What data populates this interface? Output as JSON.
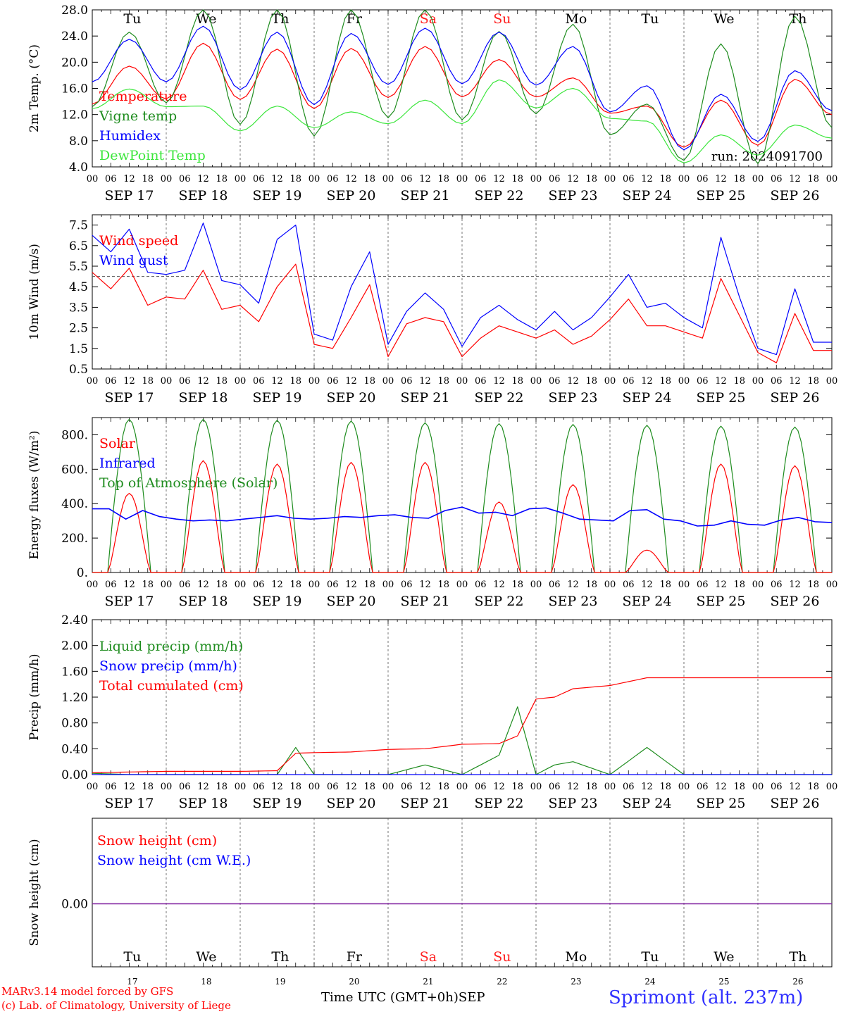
{
  "days": [
    "Tu",
    "We",
    "Th",
    "Fr",
    "Sa",
    "Su",
    "Mo",
    "Tu",
    "We",
    "Th"
  ],
  "weekend_days": [
    "Sa",
    "Su"
  ],
  "weekend_color": "#ff2020",
  "dates": [
    "SEP 17",
    "SEP 18",
    "SEP 19",
    "SEP 20",
    "SEP 21",
    "SEP 22",
    "SEP 23",
    "SEP 24",
    "SEP 25",
    "SEP 26"
  ],
  "day_numbers": [
    "17",
    "18",
    "19",
    "20",
    "21",
    "22",
    "23",
    "24",
    "25",
    "26"
  ],
  "hour_labels": [
    "00",
    "06",
    "12",
    "18"
  ],
  "run_label": "run: 2024091700",
  "x_axis_title": "Time UTC (GMT+0h)",
  "x_axis_month": "SEP",
  "footer": {
    "model": "MARv3.14 model forced by GFS",
    "credit": "(c) Lab. of Climatology, University of Liege",
    "station": "Sprimont (alt. 237m)"
  },
  "colors": {
    "red": "#ff0000",
    "green": "#1e8c1e",
    "blue": "#0000ff",
    "lightgreen": "#3ce63c",
    "purple": "#8020a0",
    "grid": "#555555"
  },
  "chart_data": [
    {
      "type": "line",
      "ylabel": "2m Temp. (°C)",
      "ylim": [
        4,
        28
      ],
      "yticks": [
        "4.0",
        "8.0",
        "12.0",
        "16.0",
        "20.0",
        "24.0",
        "28.0"
      ],
      "x_hours": [
        0,
        12,
        24,
        36,
        48,
        60,
        72,
        84,
        96,
        108,
        120,
        132,
        144,
        156,
        168,
        180,
        192,
        204,
        216,
        228,
        240
      ],
      "series": [
        {
          "name": "Temperature",
          "color": "red",
          "values": [
            13.6,
            19.4,
            14.4,
            22.9,
            14.3,
            22.0,
            12.9,
            22.1,
            14.6,
            22.4,
            14.7,
            20.4,
            14.7,
            17.6,
            12.2,
            13.3,
            7.0,
            14.2,
            7.3,
            17.4,
            12.0
          ]
        },
        {
          "name": "Vigne temp",
          "color": "green",
          "values": [
            13.2,
            24.6,
            13.8,
            28.0,
            10.5,
            28.0,
            8.7,
            28.0,
            11.5,
            28.0,
            11.2,
            24.7,
            12.1,
            25.8,
            8.9,
            13.6,
            5.0,
            22.8,
            4.5,
            27.0,
            10.0
          ]
        },
        {
          "name": "Humidex",
          "color": "blue",
          "values": [
            17.0,
            23.5,
            17.0,
            25.5,
            15.8,
            24.6,
            13.5,
            24.4,
            16.6,
            25.2,
            16.7,
            24.6,
            16.5,
            22.4,
            12.4,
            16.4,
            6.6,
            15.1,
            7.9,
            18.7,
            12.6
          ]
        },
        {
          "name": "DewPoint Temp",
          "color": "lightgreen",
          "values": [
            12.9,
            15.9,
            13.2,
            13.3,
            9.5,
            13.3,
            10.0,
            12.4,
            10.6,
            14.2,
            10.6,
            17.3,
            13.0,
            16.0,
            11.4,
            11.0,
            4.6,
            8.9,
            5.8,
            10.4,
            8.4
          ]
        }
      ]
    },
    {
      "type": "line",
      "ylabel": "10m Wind (m/s)",
      "ylim": [
        0.5,
        8.0
      ],
      "yticks": [
        "0.5",
        "1.5",
        "2.5",
        "3.5",
        "4.5",
        "5.5",
        "6.5",
        "7.5"
      ],
      "reference_line": 5.0,
      "x_hours": [
        0,
        6,
        12,
        18,
        24,
        30,
        36,
        42,
        48,
        54,
        60,
        66,
        72,
        78,
        84,
        90,
        96,
        102,
        108,
        114,
        120,
        126,
        132,
        138,
        144,
        150,
        156,
        162,
        168,
        174,
        180,
        186,
        192,
        198,
        204,
        210,
        216,
        222,
        228,
        234,
        240
      ],
      "series": [
        {
          "name": "Wind speed",
          "color": "red",
          "values": [
            5.2,
            4.4,
            5.4,
            3.6,
            4.0,
            3.9,
            5.3,
            3.4,
            3.6,
            2.8,
            4.5,
            5.6,
            1.7,
            1.5,
            3.0,
            4.6,
            1.1,
            2.7,
            3.0,
            2.8,
            1.1,
            2.0,
            2.6,
            2.3,
            2.0,
            2.4,
            1.7,
            2.1,
            2.9,
            3.9,
            2.6,
            2.6,
            2.3,
            2.0,
            4.9,
            3.1,
            1.3,
            0.8,
            3.2,
            1.4,
            1.4
          ]
        },
        {
          "name": "Wind gust",
          "color": "blue",
          "values": [
            7.0,
            6.2,
            7.3,
            5.2,
            5.1,
            5.3,
            7.6,
            4.8,
            4.6,
            3.7,
            6.8,
            7.5,
            2.2,
            1.9,
            4.5,
            6.2,
            1.7,
            3.3,
            4.2,
            3.4,
            1.6,
            3.0,
            3.6,
            2.9,
            2.4,
            3.3,
            2.4,
            3.0,
            4.0,
            5.1,
            3.5,
            3.7,
            3.0,
            2.5,
            6.9,
            4.0,
            1.5,
            1.2,
            4.4,
            1.8,
            1.8
          ]
        }
      ]
    },
    {
      "type": "line",
      "ylabel": "Energy fluxes (W/m²)",
      "ylim": [
        0,
        900
      ],
      "yticks": [
        "0.",
        "200.",
        "400.",
        "600.",
        "800."
      ],
      "series": [
        {
          "name": "Solar",
          "color": "red",
          "daily_peaks": [
            460,
            650,
            630,
            640,
            640,
            410,
            510,
            130,
            630,
            620
          ]
        },
        {
          "name": "Infrared",
          "color": "blue",
          "values": [
            370,
            370,
            310,
            360,
            325,
            310,
            300,
            305,
            300,
            310,
            320,
            330,
            315,
            310,
            315,
            325,
            320,
            330,
            335,
            320,
            315,
            360,
            380,
            345,
            350,
            330,
            370,
            375,
            345,
            310,
            305,
            300,
            360,
            365,
            310,
            300,
            270,
            275,
            300,
            280,
            275,
            305,
            320,
            295,
            290
          ]
        },
        {
          "name": "Top of Atmosphere (Solar)",
          "color": "green",
          "daily_peaks": [
            890,
            890,
            885,
            880,
            870,
            865,
            860,
            855,
            850,
            845
          ]
        }
      ]
    },
    {
      "type": "line",
      "ylabel": "Precip (mm/h)",
      "ylim": [
        0,
        2.4
      ],
      "yticks": [
        "0.00",
        "0.40",
        "0.80",
        "1.20",
        "1.60",
        "2.00",
        "2.40"
      ],
      "x_hours": [
        0,
        12,
        24,
        36,
        48,
        60,
        66,
        72,
        84,
        96,
        108,
        120,
        132,
        138,
        144,
        150,
        156,
        168,
        180,
        192,
        204,
        216,
        228,
        240
      ],
      "series": [
        {
          "name": "Liquid precip (mm/h)",
          "color": "green",
          "values": [
            0.02,
            0.0,
            0.0,
            0.0,
            0.0,
            0.0,
            0.42,
            0.0,
            0.0,
            0.0,
            0.15,
            0.0,
            0.3,
            1.05,
            0.0,
            0.15,
            0.2,
            0.0,
            0.42,
            0.0,
            0.0,
            0.0,
            0.0,
            0.0
          ]
        },
        {
          "name": "Snow precip (mm/h)",
          "color": "blue",
          "values": [
            0,
            0,
            0,
            0,
            0,
            0,
            0,
            0,
            0,
            0,
            0,
            0,
            0,
            0,
            0,
            0,
            0,
            0,
            0,
            0,
            0,
            0,
            0,
            0
          ]
        },
        {
          "name": "Total cumulated (cm)",
          "color": "red",
          "values": [
            0.03,
            0.04,
            0.05,
            0.05,
            0.05,
            0.06,
            0.33,
            0.34,
            0.35,
            0.39,
            0.4,
            0.47,
            0.48,
            0.6,
            1.17,
            1.2,
            1.33,
            1.38,
            1.5,
            1.5,
            1.5,
            1.5,
            1.5,
            1.5
          ]
        }
      ]
    },
    {
      "type": "line",
      "ylabel": "Snow height (cm)",
      "yticks": [
        "0.00"
      ],
      "series": [
        {
          "name": "Snow height (cm)",
          "color": "red",
          "values": [
            0,
            0
          ]
        },
        {
          "name": "Snow height (cm W.E.)",
          "color": "blue",
          "values": [
            0,
            0
          ]
        }
      ]
    }
  ]
}
